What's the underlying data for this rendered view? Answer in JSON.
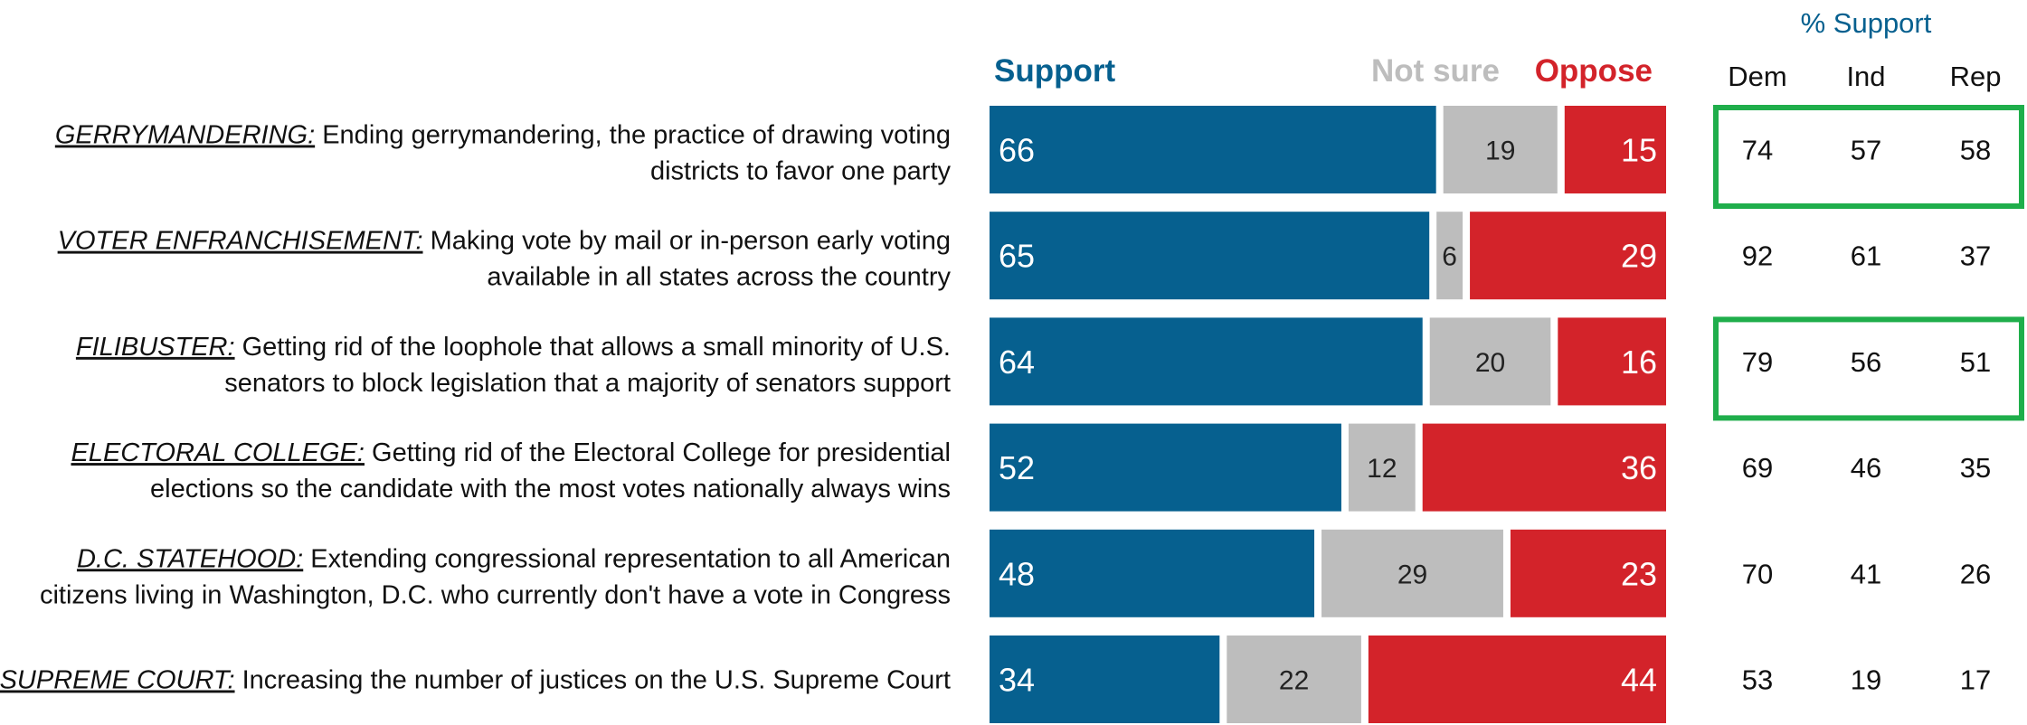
{
  "chart_data": {
    "type": "bar",
    "orientation": "horizontal",
    "stacked": true,
    "legend": {
      "support": "Support",
      "not_sure": "Not sure",
      "oppose": "Oppose"
    },
    "party_header": "% Support",
    "party_columns": [
      "Dem",
      "Ind",
      "Rep"
    ],
    "colors": {
      "support": "#06608f",
      "not_sure": "#bdbdbd",
      "oppose": "#d3232a",
      "highlight_box": "#1fae4b",
      "text": "#111111"
    },
    "items": [
      {
        "category": "GERRYMANDERING:",
        "desc1": " Ending gerrymandering, the practice of drawing voting",
        "desc2": "districts to favor one party",
        "support": 66,
        "not_sure": 19,
        "oppose": 15,
        "dem": 74,
        "ind": 57,
        "rep": 58,
        "highlighted": true
      },
      {
        "category": "VOTER ENFRANCHISEMENT:",
        "desc1": " Making vote by mail or in-person early voting",
        "desc2": "available in all states across the country",
        "support": 65,
        "not_sure": 6,
        "oppose": 29,
        "dem": 92,
        "ind": 61,
        "rep": 37,
        "highlighted": false
      },
      {
        "category": "FILIBUSTER:",
        "desc1": " Getting rid of the loophole that allows a small minority of U.S.",
        "desc2": "senators to block legislation that a majority of senators support",
        "support": 64,
        "not_sure": 20,
        "oppose": 16,
        "dem": 79,
        "ind": 56,
        "rep": 51,
        "highlighted": true
      },
      {
        "category": "ELECTORAL COLLEGE:",
        "desc1": " Getting rid of the Electoral College for presidential",
        "desc2": "elections so the candidate with the most votes nationally always wins",
        "support": 52,
        "not_sure": 12,
        "oppose": 36,
        "dem": 69,
        "ind": 46,
        "rep": 35,
        "highlighted": false
      },
      {
        "category": "D.C. STATEHOOD:",
        "desc1": " Extending congressional representation to all American",
        "desc2": "citizens living in Washington, D.C. who currently don't have a vote in Congress",
        "support": 48,
        "not_sure": 29,
        "oppose": 23,
        "dem": 70,
        "ind": 41,
        "rep": 26,
        "highlighted": false
      },
      {
        "category": "SUPREME COURT:",
        "desc1": " Increasing the number of justices on the U.S. Supreme Court",
        "desc2": "",
        "support": 34,
        "not_sure": 22,
        "oppose": 44,
        "dem": 53,
        "ind": 19,
        "rep": 17,
        "highlighted": false
      }
    ]
  }
}
